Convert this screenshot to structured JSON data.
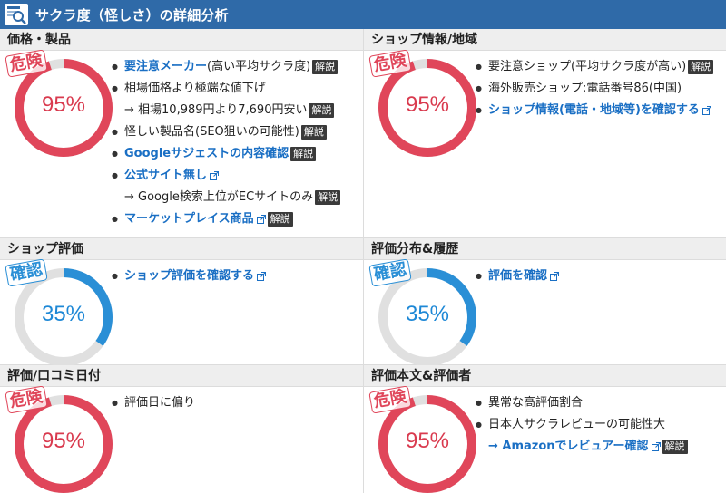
{
  "header": {
    "title": "サクラ度（怪しさ）の詳細分析"
  },
  "colors": {
    "danger": "#e0465a",
    "confirm": "#2a8fd6",
    "track": "#e0e0e0",
    "header": "#2f6aa8"
  },
  "panels": [
    {
      "id": "price",
      "title": "価格・製品",
      "stamp": "危険",
      "level": "danger",
      "percent": "95%",
      "fill": 0.95,
      "items": [
        {
          "type": "bullet",
          "link": "要注意メーカー",
          "text": "(高い平均サクラ度)",
          "badge": "解説"
        },
        {
          "type": "bullet",
          "text": "相場価格より極端な値下げ"
        },
        {
          "type": "arrow",
          "text": "→ 相場10,989円より7,690円安い",
          "badge": "解説"
        },
        {
          "type": "bullet",
          "text": "怪しい製品名(SEO狙いの可能性)",
          "badge": "解説"
        },
        {
          "type": "bullet",
          "link": "Googleサジェストの内容確認",
          "badge": "解説"
        },
        {
          "type": "bullet",
          "link": "公式サイト無し",
          "ext": true
        },
        {
          "type": "arrow",
          "text": "→ Google検索上位がECサイトのみ",
          "badge": "解説"
        },
        {
          "type": "bullet",
          "link": "マーケットプレイス商品",
          "ext": true,
          "badge": "解説"
        }
      ]
    },
    {
      "id": "shop-info",
      "title": "ショップ情報/地域",
      "stamp": "危険",
      "level": "danger",
      "percent": "95%",
      "fill": 0.95,
      "items": [
        {
          "type": "bullet",
          "text": "要注意ショップ(平均サクラ度が高い)",
          "badge": "解説"
        },
        {
          "type": "bullet",
          "text": "海外販売ショップ:電話番号86(中国)"
        },
        {
          "type": "bullet",
          "link": "ショップ情報(電話・地域等)を確認する",
          "ext": true
        }
      ]
    },
    {
      "id": "shop-rating",
      "title": "ショップ評価",
      "stamp": "確認",
      "level": "confirm",
      "percent": "35%",
      "fill": 0.35,
      "items": [
        {
          "type": "bullet",
          "link": "ショップ評価を確認する",
          "ext": true
        }
      ]
    },
    {
      "id": "rating-dist",
      "title": "評価分布&履歴",
      "stamp": "確認",
      "level": "confirm",
      "percent": "35%",
      "fill": 0.35,
      "items": [
        {
          "type": "bullet",
          "link": "評価を確認",
          "ext": true
        }
      ]
    },
    {
      "id": "review-date",
      "title": "評価/口コミ日付",
      "stamp": "危険",
      "level": "danger",
      "percent": "95%",
      "fill": 0.95,
      "items": [
        {
          "type": "bullet",
          "text": "評価日に偏り"
        }
      ]
    },
    {
      "id": "review-body",
      "title": "評価本文&評価者",
      "stamp": "危険",
      "level": "danger",
      "percent": "95%",
      "fill": 0.95,
      "items": [
        {
          "type": "bullet",
          "text": "異常な高評価割合"
        },
        {
          "type": "bullet",
          "text": "日本人サクラレビューの可能性大"
        },
        {
          "type": "arrowlink",
          "link": "→ Amazonでレビュアー確認",
          "ext": true,
          "badge": "解説"
        }
      ]
    }
  ]
}
